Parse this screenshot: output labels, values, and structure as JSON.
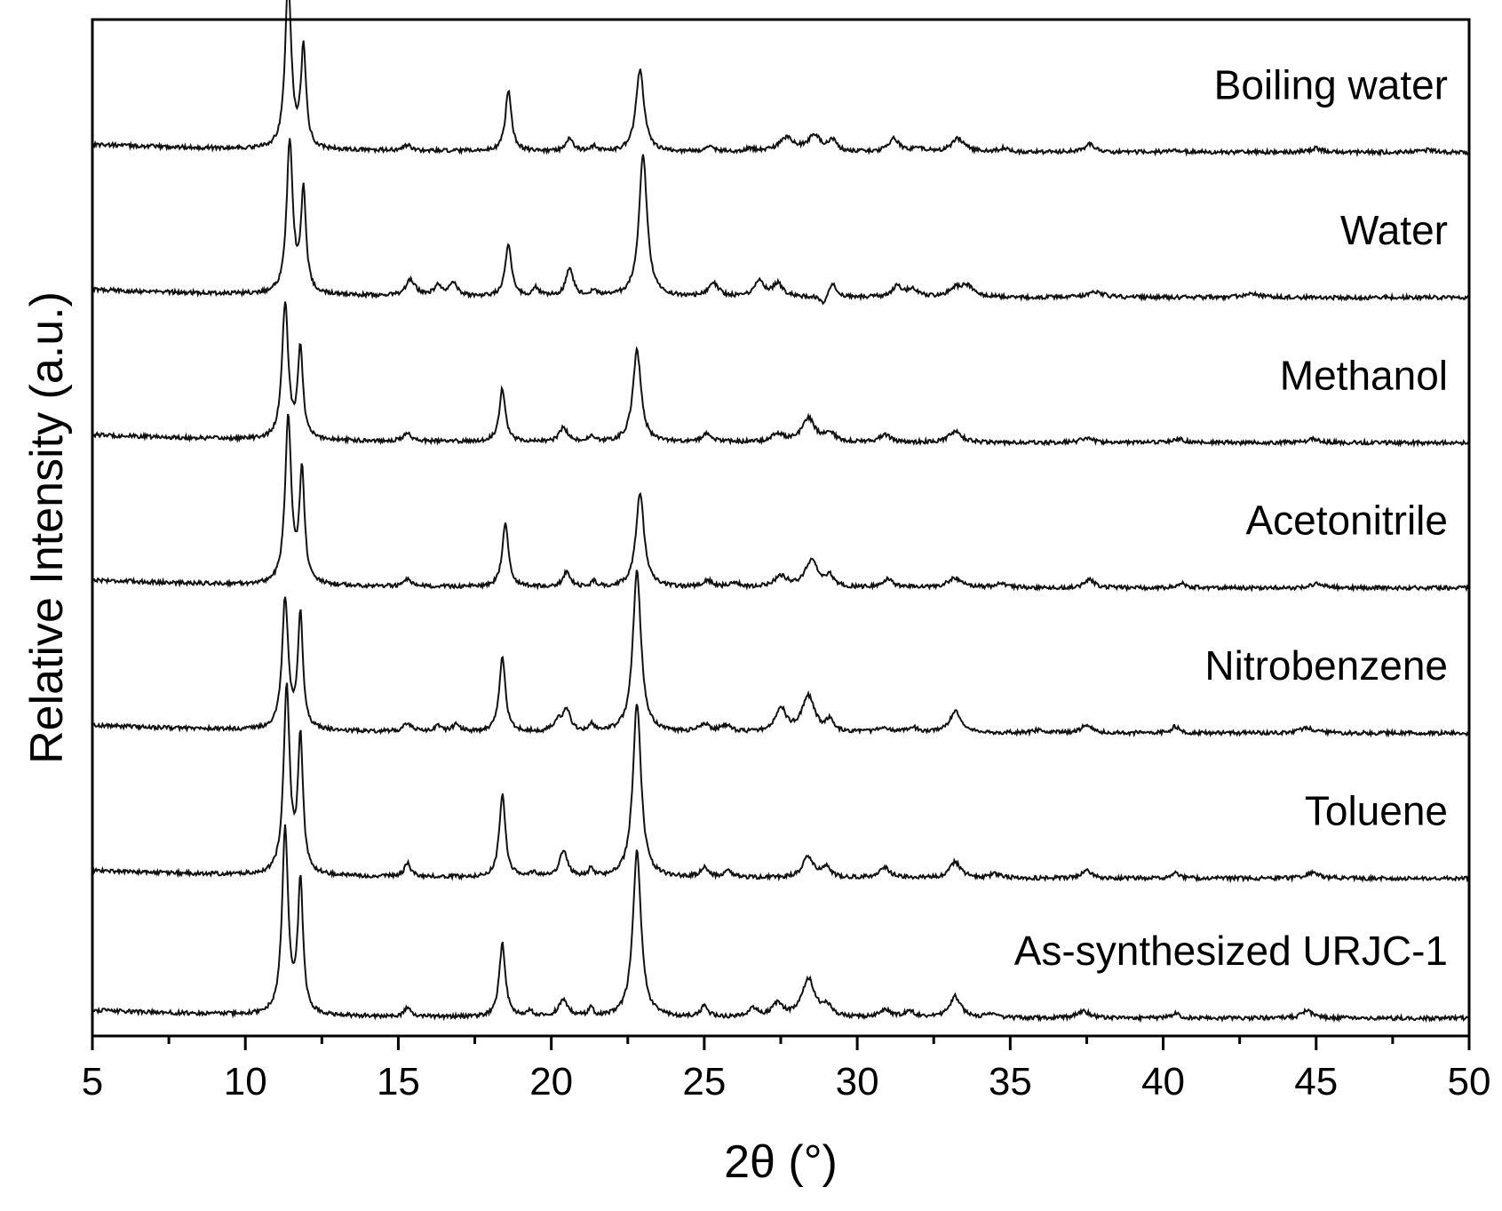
{
  "chart_data": {
    "type": "line",
    "title": "",
    "xlabel": "2θ (°)",
    "ylabel": "Relative Intensity (a.u.)",
    "xlim": [
      5,
      50
    ],
    "x_ticks": [
      "5",
      "10",
      "15",
      "20",
      "25",
      "30",
      "35",
      "40",
      "45",
      "50"
    ],
    "y_ticks_shown": false,
    "grid": false,
    "legend": "labels placed at right above each trace",
    "series": [
      {
        "name": "Boiling water",
        "baseline": 0.965,
        "peaks": [
          [
            11.4,
            1.26,
            0.12
          ],
          [
            11.9,
            0.74,
            0.1
          ],
          [
            15.3,
            0.04,
            0.15
          ],
          [
            18.6,
            0.46,
            0.12
          ],
          [
            20.6,
            0.1,
            0.14
          ],
          [
            21.4,
            0.04,
            0.1
          ],
          [
            22.9,
            0.61,
            0.16
          ],
          [
            25.2,
            0.03,
            0.2
          ],
          [
            26.5,
            0.02,
            0.2
          ],
          [
            27.7,
            0.1,
            0.3
          ],
          [
            28.6,
            0.12,
            0.25
          ],
          [
            29.2,
            0.08,
            0.15
          ],
          [
            31.2,
            0.1,
            0.2
          ],
          [
            32.0,
            0.03,
            0.2
          ],
          [
            33.3,
            0.1,
            0.25
          ],
          [
            34.8,
            0.03,
            0.2
          ],
          [
            37.6,
            0.06,
            0.2
          ],
          [
            40.4,
            0.02,
            0.2
          ],
          [
            45.0,
            0.03,
            0.2
          ],
          [
            48.7,
            0.02,
            0.2
          ]
        ]
      },
      {
        "name": "Water",
        "baseline": 0.86,
        "peaks": [
          [
            11.45,
            1.14,
            0.12
          ],
          [
            11.9,
            0.76,
            0.1
          ],
          [
            15.4,
            0.12,
            0.18
          ],
          [
            16.3,
            0.08,
            0.15
          ],
          [
            16.8,
            0.1,
            0.15
          ],
          [
            18.6,
            0.4,
            0.12
          ],
          [
            19.5,
            0.06,
            0.12
          ],
          [
            20.6,
            0.22,
            0.14
          ],
          [
            21.4,
            0.05,
            0.1
          ],
          [
            23.0,
            1.06,
            0.16
          ],
          [
            25.3,
            0.1,
            0.2
          ],
          [
            26.8,
            0.12,
            0.18
          ],
          [
            27.4,
            0.1,
            0.2
          ],
          [
            29.2,
            0.1,
            0.15
          ],
          [
            28.9,
            -0.08,
            0.1
          ],
          [
            31.3,
            0.08,
            0.2
          ],
          [
            31.8,
            0.06,
            0.2
          ],
          [
            33.2,
            0.06,
            0.25
          ],
          [
            33.6,
            0.08,
            0.25
          ],
          [
            37.8,
            0.04,
            0.3
          ],
          [
            42.9,
            0.03,
            0.3
          ]
        ]
      },
      {
        "name": "Methanol",
        "baseline": 0.875,
        "peaks": [
          [
            11.3,
            1.02,
            0.12
          ],
          [
            11.8,
            0.68,
            0.1
          ],
          [
            15.3,
            0.06,
            0.15
          ],
          [
            18.4,
            0.4,
            0.12
          ],
          [
            20.4,
            0.11,
            0.15
          ],
          [
            21.3,
            0.04,
            0.1
          ],
          [
            22.8,
            0.69,
            0.16
          ],
          [
            25.1,
            0.06,
            0.2
          ],
          [
            27.4,
            0.06,
            0.25
          ],
          [
            28.4,
            0.18,
            0.25
          ],
          [
            29.1,
            0.07,
            0.2
          ],
          [
            30.9,
            0.06,
            0.2
          ],
          [
            33.2,
            0.08,
            0.25
          ],
          [
            37.5,
            0.04,
            0.2
          ],
          [
            40.5,
            0.03,
            0.2
          ],
          [
            44.9,
            0.03,
            0.2
          ]
        ]
      },
      {
        "name": "Acetonitrile",
        "baseline": 0.92,
        "peaks": [
          [
            11.4,
            1.25,
            0.12
          ],
          [
            11.85,
            0.84,
            0.1
          ],
          [
            15.3,
            0.05,
            0.12
          ],
          [
            18.5,
            0.49,
            0.12
          ],
          [
            20.5,
            0.11,
            0.14
          ],
          [
            21.4,
            0.04,
            0.1
          ],
          [
            22.9,
            0.71,
            0.16
          ],
          [
            25.1,
            0.05,
            0.2
          ],
          [
            26.0,
            0.03,
            0.2
          ],
          [
            27.5,
            0.08,
            0.25
          ],
          [
            28.5,
            0.2,
            0.25
          ],
          [
            29.1,
            0.08,
            0.15
          ],
          [
            31.0,
            0.06,
            0.2
          ],
          [
            33.2,
            0.07,
            0.3
          ],
          [
            34.7,
            0.03,
            0.2
          ],
          [
            37.6,
            0.06,
            0.2
          ],
          [
            40.6,
            0.04,
            0.15
          ],
          [
            45.0,
            0.03,
            0.25
          ]
        ]
      },
      {
        "name": "Nitrobenzene",
        "baseline": 0.9,
        "peaks": [
          [
            11.3,
            0.98,
            0.12
          ],
          [
            11.8,
            0.86,
            0.1
          ],
          [
            15.3,
            0.06,
            0.15
          ],
          [
            16.3,
            0.04,
            0.15
          ],
          [
            16.9,
            0.05,
            0.15
          ],
          [
            18.4,
            0.56,
            0.12
          ],
          [
            20.2,
            0.08,
            0.15
          ],
          [
            20.5,
            0.16,
            0.14
          ],
          [
            21.3,
            0.06,
            0.1
          ],
          [
            22.8,
            1.21,
            0.16
          ],
          [
            25.0,
            0.06,
            0.2
          ],
          [
            25.7,
            0.05,
            0.2
          ],
          [
            27.5,
            0.18,
            0.2
          ],
          [
            28.4,
            0.27,
            0.25
          ],
          [
            29.1,
            0.08,
            0.15
          ],
          [
            30.8,
            0.04,
            0.2
          ],
          [
            31.8,
            0.04,
            0.2
          ],
          [
            33.2,
            0.16,
            0.22
          ],
          [
            35.9,
            0.02,
            0.2
          ],
          [
            37.5,
            0.06,
            0.2
          ],
          [
            40.4,
            0.05,
            0.15
          ],
          [
            44.7,
            0.04,
            0.3
          ]
        ]
      },
      {
        "name": "Toluene",
        "baseline": 0.885,
        "peaks": [
          [
            11.35,
            1.4,
            0.12
          ],
          [
            11.8,
            1.0,
            0.1
          ],
          [
            15.3,
            0.1,
            0.12
          ],
          [
            18.4,
            0.62,
            0.12
          ],
          [
            19.4,
            0.03,
            0.12
          ],
          [
            20.4,
            0.2,
            0.15
          ],
          [
            21.3,
            0.06,
            0.1
          ],
          [
            22.8,
            1.31,
            0.16
          ],
          [
            25.0,
            0.08,
            0.15
          ],
          [
            25.8,
            0.05,
            0.15
          ],
          [
            28.4,
            0.16,
            0.22
          ],
          [
            29.0,
            0.08,
            0.15
          ],
          [
            30.9,
            0.08,
            0.2
          ],
          [
            33.2,
            0.12,
            0.22
          ],
          [
            34.5,
            0.03,
            0.2
          ],
          [
            37.5,
            0.06,
            0.2
          ],
          [
            40.4,
            0.04,
            0.15
          ],
          [
            44.9,
            0.04,
            0.25
          ]
        ]
      },
      {
        "name": "As-synthesized URJC-1",
        "baseline": 0.92,
        "peaks": [
          [
            11.3,
            1.38,
            0.12
          ],
          [
            11.8,
            1.0,
            0.1
          ],
          [
            15.3,
            0.07,
            0.12
          ],
          [
            18.4,
            0.55,
            0.12
          ],
          [
            19.3,
            0.04,
            0.12
          ],
          [
            20.4,
            0.12,
            0.2
          ],
          [
            21.3,
            0.06,
            0.1
          ],
          [
            22.8,
            1.25,
            0.16
          ],
          [
            25.0,
            0.08,
            0.15
          ],
          [
            26.6,
            0.06,
            0.2
          ],
          [
            27.4,
            0.1,
            0.2
          ],
          [
            28.4,
            0.29,
            0.25
          ],
          [
            29.0,
            0.08,
            0.2
          ],
          [
            30.9,
            0.06,
            0.2
          ],
          [
            31.7,
            0.05,
            0.2
          ],
          [
            33.2,
            0.16,
            0.22
          ],
          [
            34.4,
            0.03,
            0.2
          ],
          [
            37.4,
            0.05,
            0.25
          ],
          [
            40.4,
            0.04,
            0.15
          ],
          [
            44.7,
            0.06,
            0.2
          ]
        ]
      }
    ]
  }
}
